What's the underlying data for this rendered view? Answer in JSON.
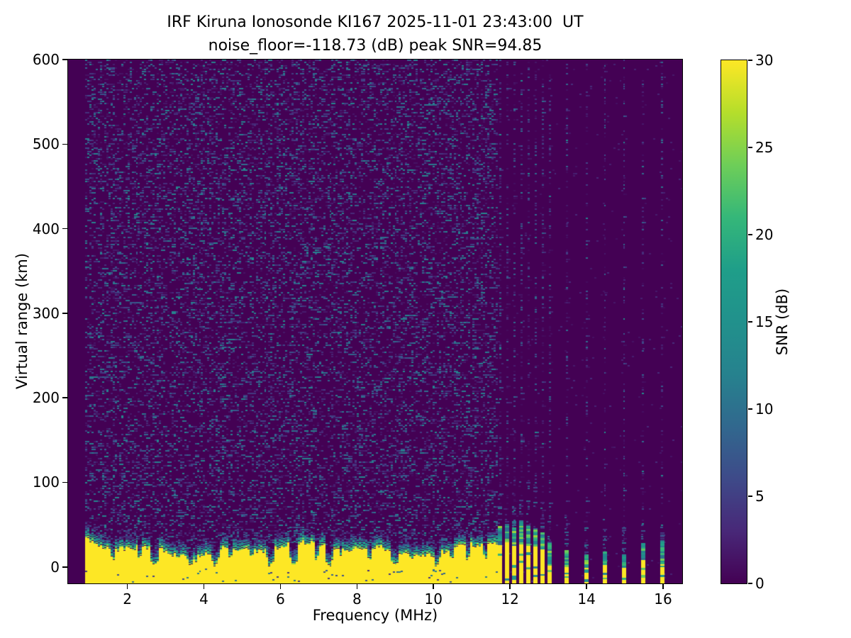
{
  "chart_data": {
    "type": "heatmap",
    "title": "IRF Kiruna Ionosonde KI167 2025-11-01 23:43:00  UT",
    "subtitle": "noise_floor=-118.73 (dB) peak SNR=94.85",
    "station": "KI167",
    "timestamp_ut": "2025-11-01 23:43:00",
    "noise_floor_db": -118.73,
    "peak_snr_db": 94.85,
    "xlabel": "Frequency (MHz)",
    "ylabel": "Virtual range (km)",
    "colorbar_label": "SNR (dB)",
    "xlim": [
      0.45,
      16.5
    ],
    "ylim": [
      -19.5,
      600
    ],
    "clim": [
      0,
      30
    ],
    "xticks": [
      2,
      4,
      6,
      8,
      10,
      12,
      14,
      16
    ],
    "yticks": [
      0,
      100,
      200,
      300,
      400,
      500,
      600
    ],
    "colorbar_ticks": [
      0,
      5,
      10,
      15,
      20,
      25,
      30
    ],
    "colormap": "viridis",
    "viridis_stops": [
      "#440154",
      "#482878",
      "#3e4a89",
      "#31688e",
      "#26828e",
      "#21918c",
      "#1f9e89",
      "#35b779",
      "#6ece58",
      "#b5de2b",
      "#fde725"
    ],
    "grid": false,
    "sweep": {
      "start_mhz": 0.9,
      "continuous_end_mhz": 11.67,
      "ground_echo_top_km": 24,
      "deep_notches_mhz": [
        2.7,
        3.65,
        4.3,
        5.7,
        6.3,
        7.25,
        8.95,
        10.05
      ],
      "shallow_notches_mhz": [
        1.6,
        2.3,
        3.3,
        4.65,
        5.2,
        6.9,
        7.55,
        8.3,
        9.4,
        10.45,
        10.9,
        11.3
      ],
      "discrete_stripes": [
        {
          "f_mhz": 11.74,
          "yellow_top_km": 30,
          "green_top_km": 50
        },
        {
          "f_mhz": 11.93,
          "yellow_top_km": 32,
          "green_top_km": 52
        },
        {
          "f_mhz": 12.11,
          "yellow_top_km": 28,
          "green_top_km": 48
        },
        {
          "f_mhz": 12.3,
          "yellow_top_km": 30,
          "green_top_km": 55
        },
        {
          "f_mhz": 12.48,
          "yellow_top_km": 26,
          "green_top_km": 50
        },
        {
          "f_mhz": 12.67,
          "yellow_top_km": 28,
          "green_top_km": 46
        },
        {
          "f_mhz": 12.85,
          "yellow_top_km": 22,
          "green_top_km": 42
        },
        {
          "f_mhz": 13.04,
          "yellow_top_km": 5,
          "green_top_km": 30
        },
        {
          "f_mhz": 13.48,
          "yellow_top_km": 3,
          "green_top_km": 22
        },
        {
          "f_mhz": 14.0,
          "yellow_top_km": 1,
          "green_top_km": 16
        },
        {
          "f_mhz": 14.48,
          "yellow_top_km": 3,
          "green_top_km": 19
        },
        {
          "f_mhz": 14.98,
          "yellow_top_km": 2,
          "green_top_km": 16
        },
        {
          "f_mhz": 15.48,
          "yellow_top_km": 9,
          "green_top_km": 30
        },
        {
          "f_mhz": 15.98,
          "yellow_top_km": 6,
          "green_top_km": 32
        }
      ]
    }
  }
}
